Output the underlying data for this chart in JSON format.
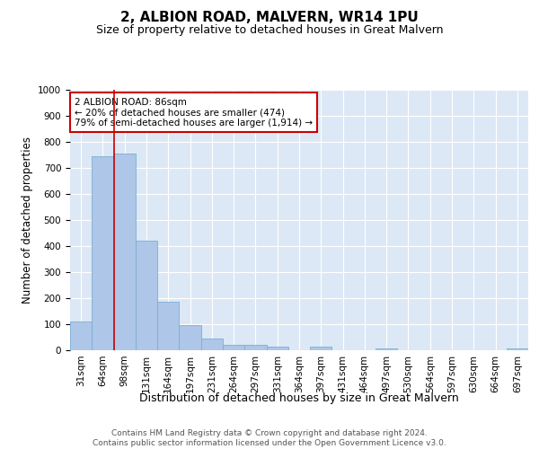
{
  "title1": "2, ALBION ROAD, MALVERN, WR14 1PU",
  "title2": "Size of property relative to detached houses in Great Malvern",
  "xlabel": "Distribution of detached houses by size in Great Malvern",
  "ylabel": "Number of detached properties",
  "categories": [
    "31sqm",
    "64sqm",
    "98sqm",
    "131sqm",
    "164sqm",
    "197sqm",
    "231sqm",
    "264sqm",
    "297sqm",
    "331sqm",
    "364sqm",
    "397sqm",
    "431sqm",
    "464sqm",
    "497sqm",
    "530sqm",
    "564sqm",
    "597sqm",
    "630sqm",
    "664sqm",
    "697sqm"
  ],
  "values": [
    110,
    745,
    755,
    420,
    185,
    97,
    45,
    22,
    22,
    15,
    0,
    13,
    0,
    0,
    7,
    0,
    0,
    0,
    0,
    0,
    8
  ],
  "bar_color": "#aec6e8",
  "bar_edge_color": "#7aafd4",
  "background_color": "#dce8f5",
  "vline_x": 1.5,
  "vline_color": "#cc0000",
  "annotation_text": "2 ALBION ROAD: 86sqm\n← 20% of detached houses are smaller (474)\n79% of semi-detached houses are larger (1,914) →",
  "annotation_box_color": "#ffffff",
  "annotation_border_color": "#cc0000",
  "ylim": [
    0,
    1000
  ],
  "yticks": [
    0,
    100,
    200,
    300,
    400,
    500,
    600,
    700,
    800,
    900,
    1000
  ],
  "footer": "Contains HM Land Registry data © Crown copyright and database right 2024.\nContains public sector information licensed under the Open Government Licence v3.0.",
  "title1_fontsize": 11,
  "title2_fontsize": 9,
  "xlabel_fontsize": 9,
  "ylabel_fontsize": 8.5,
  "tick_fontsize": 7.5,
  "footer_fontsize": 6.5
}
